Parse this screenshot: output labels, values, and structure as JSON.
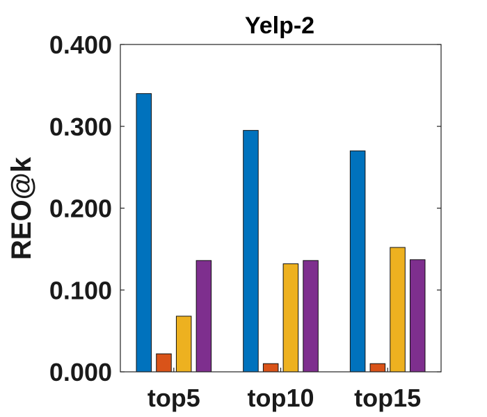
{
  "chart_data": {
    "type": "bar",
    "title": "Yelp-2",
    "xlabel": "",
    "ylabel": "REO@k",
    "categories": [
      "top5",
      "top10",
      "top15"
    ],
    "ylim": [
      0,
      0.4
    ],
    "yticks": [
      0.0,
      0.1,
      0.2,
      0.3,
      0.4
    ],
    "ytick_labels": [
      "0.000",
      "0.100",
      "0.200",
      "0.300",
      "0.400"
    ],
    "grid": false,
    "legend": "none",
    "series": [
      {
        "color": "#0072BD",
        "values": [
          0.34,
          0.295,
          0.27
        ]
      },
      {
        "color": "#D95319",
        "values": [
          0.022,
          0.01,
          0.01
        ]
      },
      {
        "color": "#EDB120",
        "values": [
          0.068,
          0.132,
          0.152
        ]
      },
      {
        "color": "#7E2F8E",
        "values": [
          0.136,
          0.136,
          0.137
        ]
      }
    ]
  }
}
